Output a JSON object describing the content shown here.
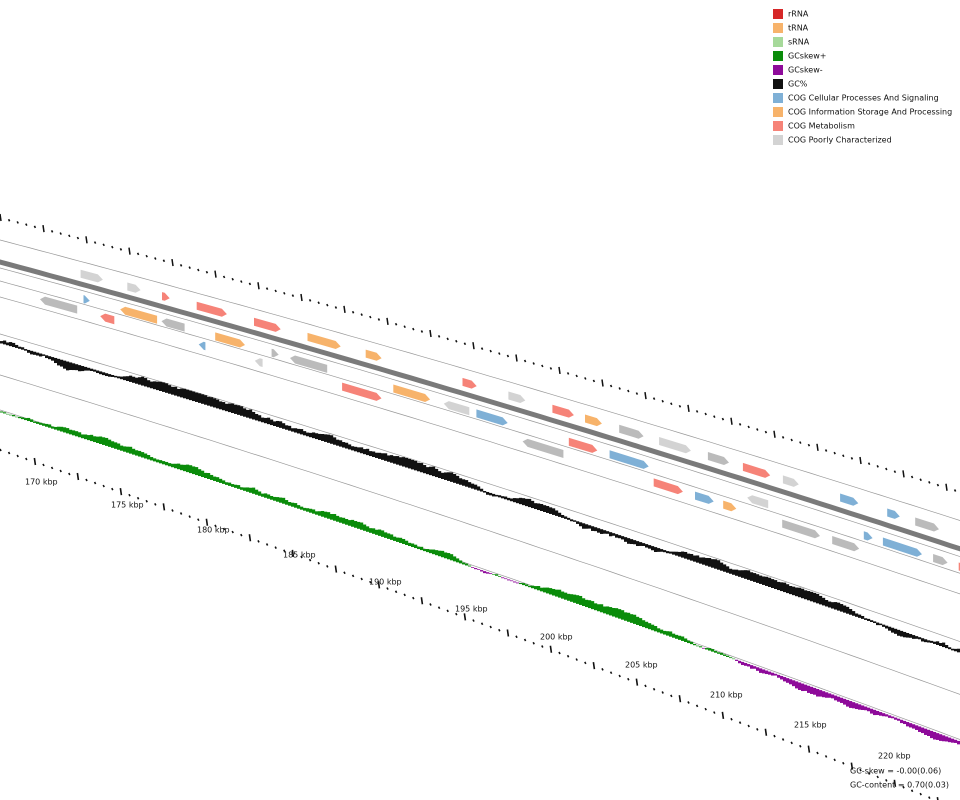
{
  "legend": [
    {
      "label": "rRNA",
      "color": "#d62728"
    },
    {
      "label": "tRNA",
      "color": "#f7b36b"
    },
    {
      "label": "sRNA",
      "color": "#a6d99a"
    },
    {
      "label": "GCskew+",
      "color": "#0a8c0a"
    },
    {
      "label": "GCskew-",
      "color": "#8e0a9a"
    },
    {
      "label": "GC%",
      "color": "#111111"
    },
    {
      "label": "COG Cellular Processes And Signaling",
      "color": "#7fb0d6"
    },
    {
      "label": "COG Information Storage And Processing",
      "color": "#f7b36b"
    },
    {
      "label": "COG Metabolism",
      "color": "#f68378"
    },
    {
      "label": "COG Poorly Characterized",
      "color": "#d3d3d3"
    }
  ],
  "axis_labels": [
    "170 kbp",
    "175 kbp",
    "180 kbp",
    "185 kbp",
    "190 kbp",
    "195 kbp",
    "200 kbp",
    "205 kbp",
    "210 kbp",
    "215 kbp",
    "220 kbp"
  ],
  "footer": [
    "GC-skew = -0.00(0.06)",
    "GC-content = 0.70(0.03)"
  ]
}
